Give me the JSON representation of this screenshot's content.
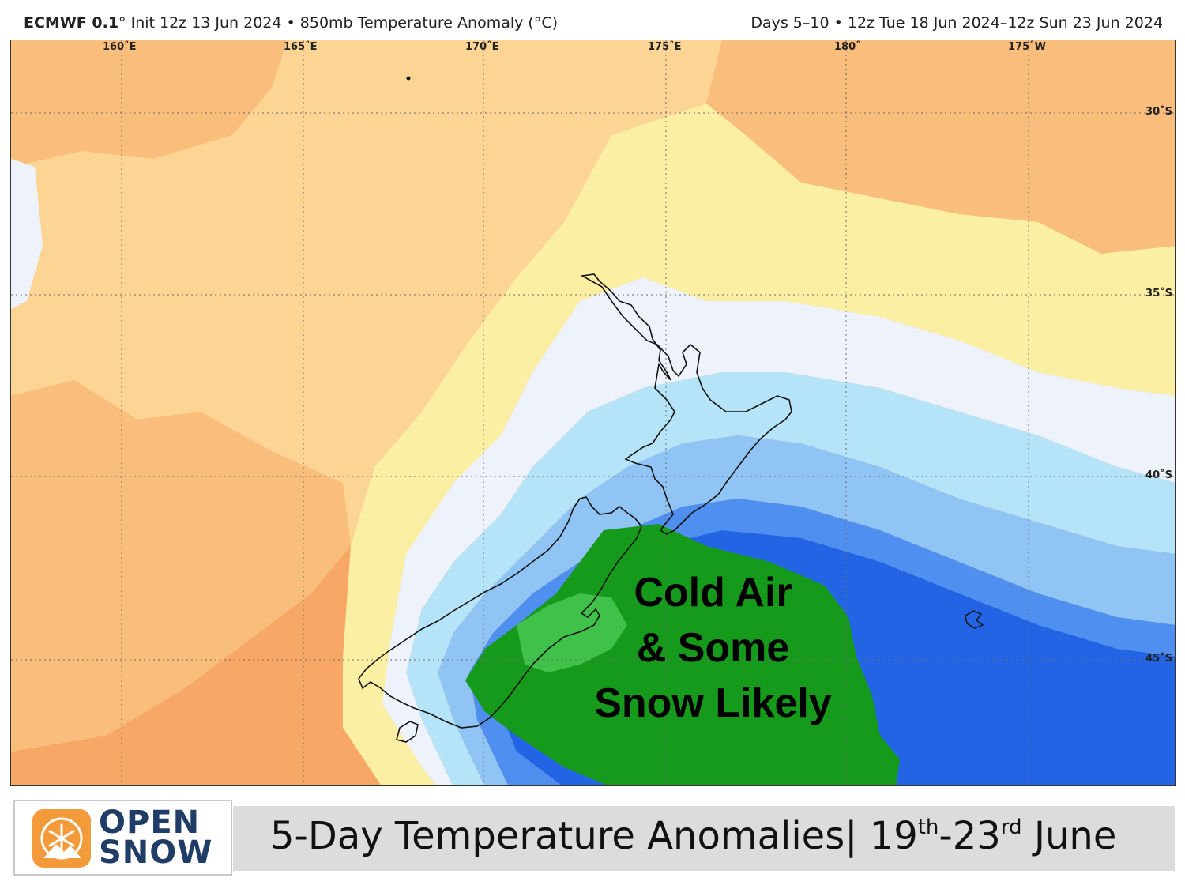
{
  "header": {
    "model": "ECMWF 0.1",
    "init_and_field": "° Init 12z 13 Jun 2024 • 850mb Temperature Anomaly (°C)",
    "valid_period": "Days 5–10 • 12z Tue 18 Jun 2024–12z Sun 23 Jun 2024"
  },
  "map": {
    "longitude_labels": [
      "160˚E",
      "165˚E",
      "170˚E",
      "175˚E",
      "180˚",
      "175˚W"
    ],
    "latitude_labels": [
      "30˚S",
      "35˚S",
      "40˚S",
      "45˚S"
    ],
    "annotation_lines": [
      "Cold Air",
      "& Some",
      "Snow Likely"
    ],
    "colors": {
      "warm_orange": "#f7a866",
      "orange": "#f9bd7c",
      "light_orange": "#fcd595",
      "yellow": "#fbefa3",
      "pale_yellow": "#fdf8c4",
      "near_zero": "#eef2fb",
      "light_cyan": "#b5e3f7",
      "light_blue": "#8fc4f5",
      "blue": "#4f8ff0",
      "deep_blue": "#2264e4",
      "green": "#159a1c",
      "light_green": "#3fc14a"
    }
  },
  "footer": {
    "brand_line1": "OPEN",
    "brand_line2": "SNOW",
    "title_main": "5-Day Temperature Anomalies| 19",
    "title_sup1": "th",
    "title_mid": "-23",
    "title_sup2": "rd",
    "title_end": " June"
  }
}
